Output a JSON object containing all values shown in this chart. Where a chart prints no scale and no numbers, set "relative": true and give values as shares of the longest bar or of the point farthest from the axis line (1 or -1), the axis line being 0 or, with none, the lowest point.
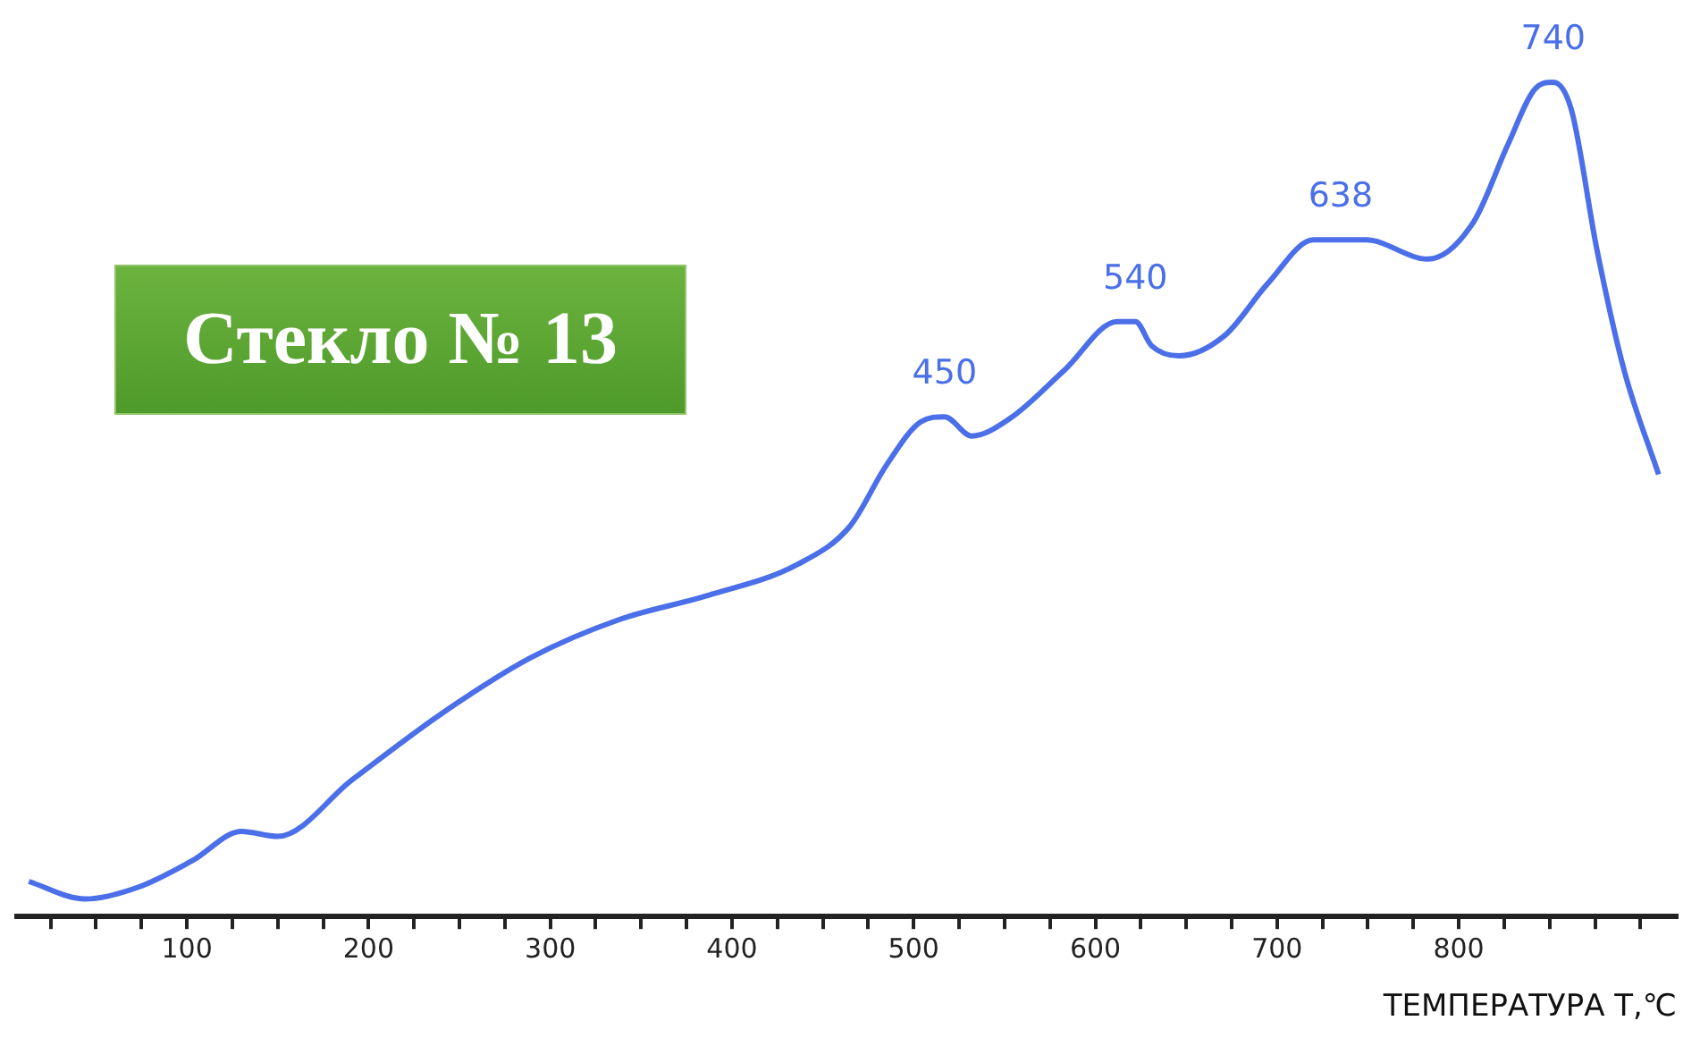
{
  "chart_data": {
    "type": "line",
    "title": "Стекло № 13",
    "xlabel": "ТЕМПЕРАТУРА T,℃",
    "relative": true,
    "x": [
      13,
      44,
      73,
      103,
      130,
      150,
      191,
      240,
      289,
      338,
      387,
      436,
      465,
      485,
      504,
      517,
      532,
      553,
      583,
      612,
      622,
      631,
      646,
      671,
      695,
      720,
      749,
      783,
      808,
      827,
      842,
      852,
      862,
      876,
      891,
      910
    ],
    "series": [
      {
        "color": "#4a6fe8",
        "values": [
          0.042,
          0.021,
          0.035,
          0.067,
          0.102,
          0.096,
          0.164,
          0.243,
          0.31,
          0.356,
          0.385,
          0.422,
          0.468,
          0.541,
          0.593,
          0.599,
          0.576,
          0.597,
          0.655,
          0.713,
          0.713,
          0.684,
          0.672,
          0.696,
          0.759,
          0.811,
          0.811,
          0.788,
          0.832,
          0.925,
          0.992,
          1,
          0.967,
          0.8,
          0.655,
          0.53
        ]
      }
    ],
    "xlim": [
      5,
      920
    ],
    "xticks": [
      {
        "value": 25,
        "label": null
      },
      {
        "value": 50,
        "label": null
      },
      {
        "value": 75,
        "label": null
      },
      100,
      {
        "value": 125,
        "label": null
      },
      {
        "value": 150,
        "label": null
      },
      {
        "value": 175,
        "label": null
      },
      200,
      {
        "value": 225,
        "label": null
      },
      {
        "value": 250,
        "label": null
      },
      {
        "value": 275,
        "label": null
      },
      300,
      {
        "value": 325,
        "label": null
      },
      {
        "value": 350,
        "label": null
      },
      {
        "value": 375,
        "label": null
      },
      400,
      {
        "value": 425,
        "label": null
      },
      {
        "value": 450,
        "label": null
      },
      {
        "value": 475,
        "label": null
      },
      500,
      {
        "value": 525,
        "label": null
      },
      {
        "value": 550,
        "label": null
      },
      {
        "value": 575,
        "label": null
      },
      600,
      {
        "value": 625,
        "label": null
      },
      {
        "value": 650,
        "label": null
      },
      {
        "value": 675,
        "label": null
      },
      700,
      {
        "value": 725,
        "label": null
      },
      {
        "value": 750,
        "label": null
      },
      {
        "value": 775,
        "label": null
      },
      800,
      {
        "value": 825,
        "label": null
      },
      {
        "value": 850,
        "label": null
      },
      {
        "value": 875,
        "label": null
      },
      {
        "value": 900,
        "label": null
      }
    ],
    "annotations": [
      {
        "text": "450",
        "x": 517,
        "y": 0.599
      },
      {
        "text": "540",
        "x": 622,
        "y": 0.713
      },
      {
        "text": "638",
        "x": 735,
        "y": 0.811
      },
      {
        "text": "740",
        "x": 852,
        "y": 1
      }
    ],
    "grid": false,
    "legend": false
  }
}
